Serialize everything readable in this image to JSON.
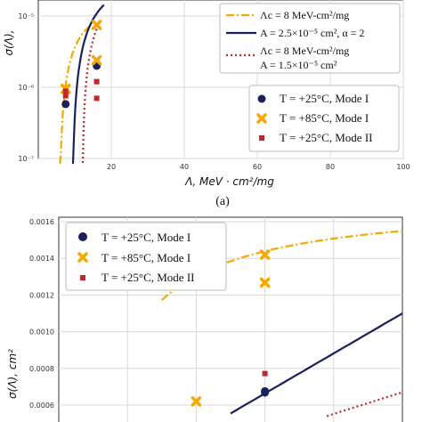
{
  "colors": {
    "model_fixed_lc": "#f5a800",
    "model_power": "#1b1f5e",
    "model_dotted": "#c2262e",
    "mode1_25": "#1b1f5e",
    "mode1_85": "#f5a800",
    "mode2_25": "#c2262e"
  },
  "chart_data": [
    {
      "type": "scatter",
      "panel_caption": "(a)",
      "xlabel": "Λ, MeV · cm²/mg",
      "ylabel": "σ(Λ),",
      "yscale": "log",
      "xlim": [
        0,
        100
      ],
      "ylim": [
        1e-07,
        1e-05
      ],
      "x_ticks": [
        "20",
        "40",
        "60",
        "80",
        "100"
      ],
      "y_ticks": [
        "10⁻⁷",
        "10⁻⁶",
        "10⁻⁵"
      ],
      "grid": true,
      "model_legend": [
        {
          "label": "Λc = 8 MeV-cm²/mg",
          "style": "dash-dot"
        },
        {
          "label": "A = 2.5×10⁻⁵ cm², α = 2",
          "style": "solid"
        },
        {
          "label": "Λc = 8 MeV-cm²/mg",
          "label2": "A = 1.5×10⁻⁵ cm²",
          "style": "dotted"
        }
      ],
      "data_legend": [
        {
          "label": "T = +25°C, Mode I",
          "marker": "circle"
        },
        {
          "label": "T = +85°C, Mode I",
          "marker": "x"
        },
        {
          "label": "T = +25°C, Mode II",
          "marker": "square"
        }
      ],
      "series": [
        {
          "name": "T = +25°C, Mode I",
          "marker": "circle",
          "x": [
            7.5,
            16
          ],
          "y": [
            5.8e-07,
            2e-06
          ]
        },
        {
          "name": "T = +85°C, Mode I",
          "marker": "x",
          "x": [
            7.5,
            16,
            16
          ],
          "y": [
            9.5e-07,
            7.5e-06,
            2.4e-06
          ]
        },
        {
          "name": "T = +25°C, Mode II",
          "marker": "square",
          "x": [
            7.5,
            7.5,
            16,
            16
          ],
          "y": [
            8.8e-07,
            7.6e-07,
            1.2e-06,
            7e-07
          ]
        }
      ]
    },
    {
      "type": "scatter",
      "xlabel": "",
      "ylabel": "σ(Λ), cm²",
      "yscale": "linear",
      "xlim": [
        0,
        100
      ],
      "ylim": [
        0.0006,
        0.0016
      ],
      "y_ticks": [
        "0.0006",
        "0.0008",
        "0.0010",
        "0.0012",
        "0.0014",
        "0.0016"
      ],
      "grid": true,
      "data_legend": [
        {
          "label": "T = +25°C, Mode I",
          "marker": "circle"
        },
        {
          "label": "T = +85°C, Mode I",
          "marker": "x"
        },
        {
          "label": "T = +25°C, Mode II",
          "marker": "square"
        }
      ],
      "series": [
        {
          "name": "T = +25°C, Mode I",
          "marker": "circle",
          "x": [
            60,
            60
          ],
          "y": [
            0.000676,
            0.000668
          ]
        },
        {
          "name": "T = +85°C, Mode I",
          "marker": "x",
          "x": [
            40,
            60,
            60
          ],
          "y": [
            0.00062,
            0.00142,
            0.001268
          ]
        },
        {
          "name": "T = +25°C, Mode II",
          "marker": "square",
          "x": [
            60
          ],
          "y": [
            0.000772
          ]
        }
      ]
    }
  ]
}
